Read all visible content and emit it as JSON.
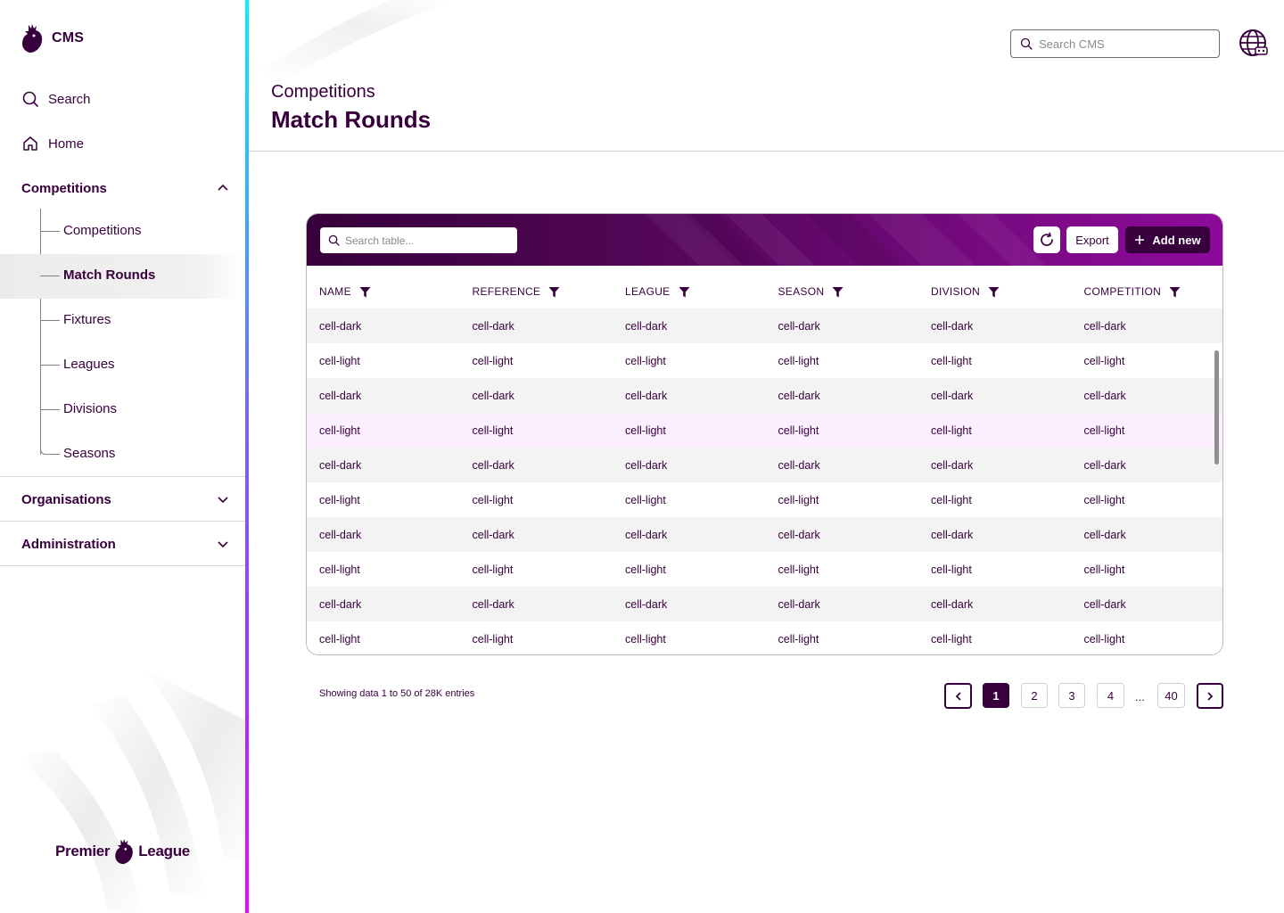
{
  "app": {
    "name": "CMS",
    "brand_wordmark_left": "Premier",
    "brand_wordmark_right": "League"
  },
  "sidebar": {
    "search_label": "Search",
    "home_label": "Home",
    "sections": [
      {
        "label": "Competitions",
        "expanded": true
      },
      {
        "label": "Organisations",
        "expanded": false
      },
      {
        "label": "Administration",
        "expanded": false
      }
    ],
    "competition_items": [
      {
        "label": "Competitions",
        "active": false
      },
      {
        "label": "Match Rounds",
        "active": true
      },
      {
        "label": "Fixtures",
        "active": false
      },
      {
        "label": "Leagues",
        "active": false
      },
      {
        "label": "Divisions",
        "active": false
      },
      {
        "label": "Seasons",
        "active": false
      }
    ]
  },
  "header": {
    "search_placeholder": "Search CMS",
    "breadcrumb": "Competitions",
    "title": "Match Rounds"
  },
  "table": {
    "search_placeholder": "Search table...",
    "export_label": "Export",
    "add_new_label": "Add new",
    "columns": [
      "NAME",
      "REFERENCE",
      "LEAGUE",
      "SEASON",
      "DIVISION",
      "COMPETITION"
    ],
    "rows": [
      [
        "cell-dark",
        "cell-dark",
        "cell-dark",
        "cell-dark",
        "cell-dark",
        "cell-dark"
      ],
      [
        "cell-light",
        "cell-light",
        "cell-light",
        "cell-light",
        "cell-light",
        "cell-light"
      ],
      [
        "cell-dark",
        "cell-dark",
        "cell-dark",
        "cell-dark",
        "cell-dark",
        "cell-dark"
      ],
      [
        "cell-light",
        "cell-light",
        "cell-light",
        "cell-light",
        "cell-light",
        "cell-light"
      ],
      [
        "cell-dark",
        "cell-dark",
        "cell-dark",
        "cell-dark",
        "cell-dark",
        "cell-dark"
      ],
      [
        "cell-light",
        "cell-light",
        "cell-light",
        "cell-light",
        "cell-light",
        "cell-light"
      ],
      [
        "cell-dark",
        "cell-dark",
        "cell-dark",
        "cell-dark",
        "cell-dark",
        "cell-dark"
      ],
      [
        "cell-light",
        "cell-light",
        "cell-light",
        "cell-light",
        "cell-light",
        "cell-light"
      ],
      [
        "cell-dark",
        "cell-dark",
        "cell-dark",
        "cell-dark",
        "cell-dark",
        "cell-dark"
      ],
      [
        "cell-light",
        "cell-light",
        "cell-light",
        "cell-light",
        "cell-light",
        "cell-light"
      ]
    ],
    "highlighted_row_index": 3
  },
  "pagination": {
    "summary": "Showing data 1 to 50 of  28K entries",
    "pages": [
      "1",
      "2",
      "3",
      "4",
      "40"
    ],
    "current_page": "1",
    "ellipsis": "..."
  },
  "colors": {
    "brand_purple": "#37003c",
    "toolbar_gradient_end": "#8d0a9a",
    "row_dark": "#f3f3f3",
    "row_highlight": "#fcefff"
  },
  "icons": [
    "lion-logo-icon",
    "search-icon",
    "home-icon",
    "chevron-up-icon",
    "chevron-down-icon",
    "globe-icon",
    "refresh-icon",
    "plus-icon",
    "filter-icon",
    "chevron-left-icon",
    "chevron-right-icon"
  ]
}
